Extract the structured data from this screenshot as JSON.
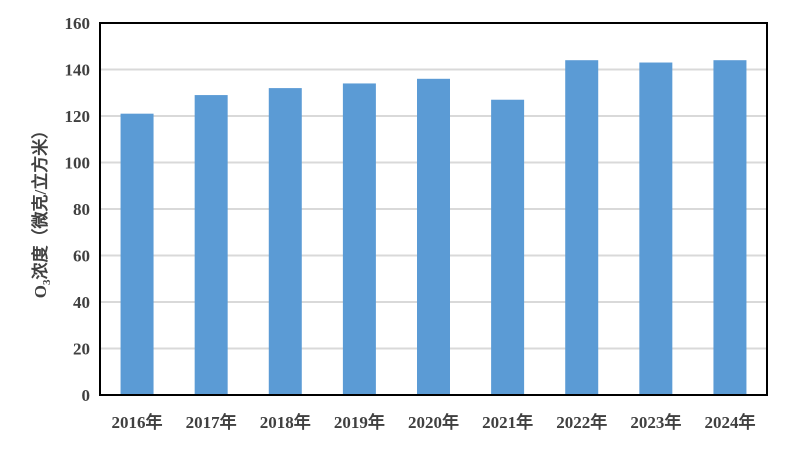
{
  "chart_data": {
    "type": "bar",
    "categories": [
      "2016年",
      "2017年",
      "2018年",
      "2019年",
      "2020年",
      "2021年",
      "2022年",
      "2023年",
      "2024年"
    ],
    "values": [
      121,
      129,
      132,
      134,
      136,
      127,
      144,
      143,
      144
    ],
    "title": "",
    "xlabel": "",
    "ylabel_main": "O",
    "ylabel_sub": "3",
    "ylabel_rest": "浓度（微克/立方米）",
    "ylim": [
      0,
      160
    ],
    "yticks": [
      0,
      20,
      40,
      60,
      80,
      100,
      120,
      140,
      160
    ],
    "grid": true,
    "legend": "none",
    "bar_color": "#5B9BD5"
  }
}
